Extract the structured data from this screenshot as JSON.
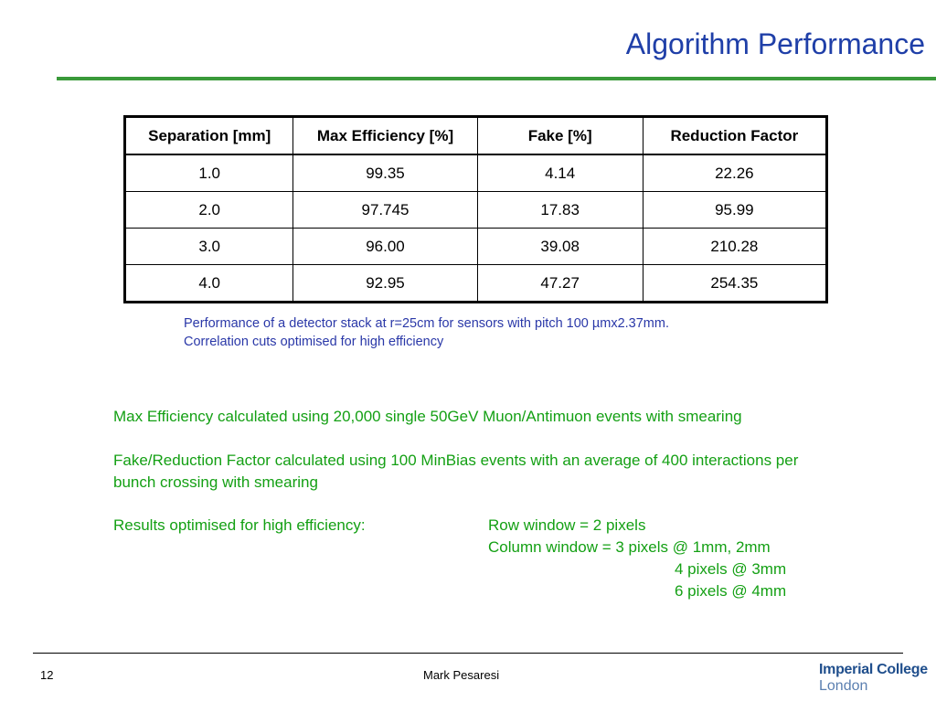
{
  "slide": {
    "title": "Algorithm Performance",
    "page_number": "12",
    "author": "Mark Pesaresi",
    "logo": {
      "line1": "Imperial College",
      "line2": "London"
    }
  },
  "table": {
    "headers": [
      "Separation [mm]",
      "Max Efficiency [%]",
      "Fake [%]",
      "Reduction Factor"
    ],
    "rows": [
      [
        "1.0",
        "99.35",
        "4.14",
        "22.26"
      ],
      [
        "2.0",
        "97.745",
        "17.83",
        "95.99"
      ],
      [
        "3.0",
        "96.00",
        "39.08",
        "210.28"
      ],
      [
        "4.0",
        "92.95",
        "47.27",
        "254.35"
      ]
    ]
  },
  "caption": {
    "line1": "Performance of a detector stack at r=25cm for sensors with pitch 100 µmx2.37mm.",
    "line2": "Correlation cuts optimised for high efficiency"
  },
  "body": {
    "para1": "Max Efficiency calculated using 20,000 single 50GeV Muon/Antimuon events with smearing",
    "para2": "Fake/Reduction Factor calculated using 100 MinBias events with an average of 400 interactions per bunch crossing with smearing",
    "results_label": "Results optimised for high efficiency:",
    "results_lines": [
      "Row window = 2 pixels",
      "Column window = 3 pixels @ 1mm, 2mm",
      "4 pixels @ 3mm",
      "6 pixels @ 4mm"
    ]
  },
  "colors": {
    "title": "#1f3fa8",
    "title_rule": "#3a9a3a",
    "caption": "#2a38a8",
    "body_text": "#14a014",
    "logo_primary": "#1f4e8c"
  }
}
